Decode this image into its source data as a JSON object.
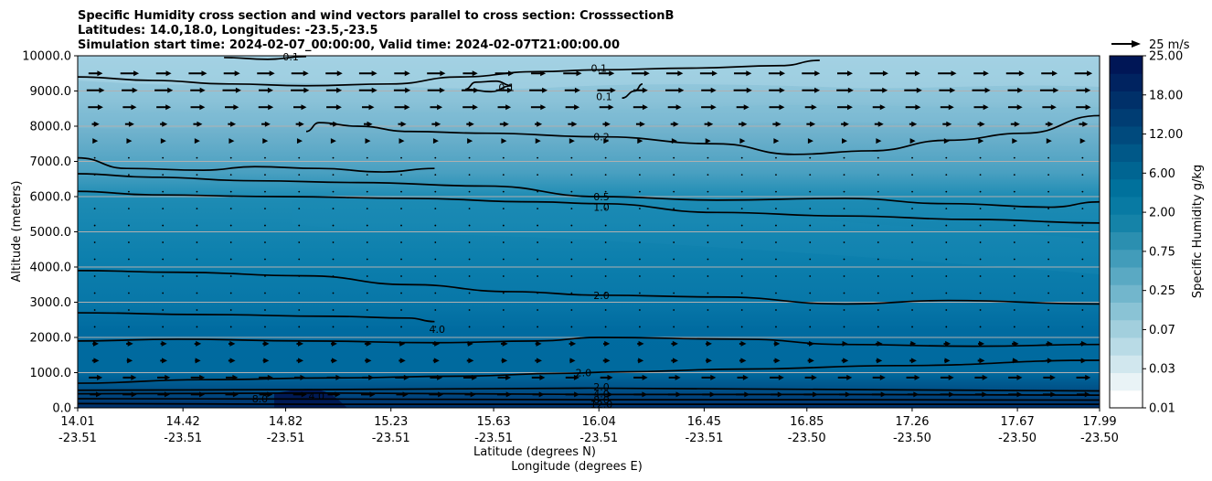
{
  "chart_data": {
    "type": "contour",
    "title_lines": [
      "Specific Humidity cross section and wind vectors parallel to cross section: CrosssectionB",
      "Latitudes: 14.0,18.0, Longitudes: -23.5,-23.5",
      "Simulation start time: 2024-02-07_00:00:00, Valid time: 2024-02-07T21:00:00.00"
    ],
    "ylabel": "Altitude (meters)",
    "xlabel_lines": [
      "Latitude (degrees N)",
      "Longitude (degrees E)"
    ],
    "ylim": [
      0,
      10000
    ],
    "y_ticks": [
      "0.0",
      "1000.0",
      "2000.0",
      "3000.0",
      "4000.0",
      "5000.0",
      "6000.0",
      "7000.0",
      "8000.0",
      "9000.0",
      "10000.0"
    ],
    "x_ticks": [
      {
        "lat": "14.01",
        "lon": "-23.51"
      },
      {
        "lat": "14.42",
        "lon": "-23.51"
      },
      {
        "lat": "14.82",
        "lon": "-23.51"
      },
      {
        "lat": "15.23",
        "lon": "-23.51"
      },
      {
        "lat": "15.63",
        "lon": "-23.51"
      },
      {
        "lat": "16.04",
        "lon": "-23.51"
      },
      {
        "lat": "16.45",
        "lon": "-23.51"
      },
      {
        "lat": "16.85",
        "lon": "-23.50"
      },
      {
        "lat": "17.26",
        "lon": "-23.50"
      },
      {
        "lat": "17.67",
        "lon": "-23.50"
      },
      {
        "lat": "17.99",
        "lon": "-23.50"
      }
    ],
    "grid": "horizontal",
    "colorbar": {
      "label": "Specific Humidity g/kg",
      "ticks": [
        "0.01",
        "0.03",
        "0.07",
        "0.25",
        "0.75",
        "2.00",
        "6.00",
        "12.00",
        "18.00",
        "25.00"
      ],
      "colors": [
        "#ffffff",
        "#e9f3f6",
        "#d1e7ee",
        "#b9dbe6",
        "#a2cfdd",
        "#8ac3d5",
        "#72b6cc",
        "#5aa9c3",
        "#429cba",
        "#2b8fb0",
        "#1583a8",
        "#087aa3",
        "#00719c",
        "#006592",
        "#005888",
        "#004a7d",
        "#003d73",
        "#003069",
        "#002360",
        "#001656"
      ]
    },
    "wind_reference": {
      "label": "25 m/s",
      "speed": 25
    },
    "contour_labels": [
      {
        "text": "0.1",
        "lat": 14.84,
        "alt": 9980
      },
      {
        "text": "0.1",
        "lat": 16.04,
        "alt": 9650
      },
      {
        "text": "0.1",
        "lat": 15.68,
        "alt": 9100
      },
      {
        "text": "0.1",
        "lat": 16.06,
        "alt": 8850
      },
      {
        "text": "0.2",
        "lat": 16.05,
        "alt": 7700
      },
      {
        "text": "0.5",
        "lat": 16.05,
        "alt": 6000
      },
      {
        "text": "1.0",
        "lat": 16.05,
        "alt": 5700
      },
      {
        "text": "2.0",
        "lat": 16.05,
        "alt": 3200
      },
      {
        "text": "4.0",
        "lat": 15.41,
        "alt": 2240
      },
      {
        "text": "2.0",
        "lat": 15.98,
        "alt": 1000
      },
      {
        "text": "2.0",
        "lat": 16.05,
        "alt": 600
      },
      {
        "text": "4.0",
        "lat": 16.05,
        "alt": 400
      },
      {
        "text": "8.0",
        "lat": 16.05,
        "alt": 230
      },
      {
        "text": "12.0",
        "lat": 16.05,
        "alt": 100
      },
      {
        "text": "8.0",
        "lat": 14.72,
        "alt": 260
      },
      {
        "text": "4.0",
        "lat": 14.94,
        "alt": 340
      }
    ],
    "contours": [
      {
        "level": "0.1",
        "points": [
          [
            14.01,
            9400
          ],
          [
            14.3,
            9300
          ],
          [
            14.6,
            9200
          ],
          [
            14.9,
            9150
          ],
          [
            15.23,
            9200
          ],
          [
            15.5,
            9400
          ],
          [
            15.8,
            9550
          ],
          [
            16.04,
            9600
          ],
          [
            16.4,
            9650
          ],
          [
            16.75,
            9720
          ],
          [
            16.9,
            9870
          ]
        ]
      },
      {
        "level": "0.1",
        "points": [
          [
            15.52,
            9050
          ],
          [
            15.56,
            9250
          ],
          [
            15.64,
            9280
          ],
          [
            15.7,
            9150
          ],
          [
            15.62,
            8980
          ],
          [
            15.52,
            9050
          ]
        ]
      },
      {
        "level": "0.1",
        "points": [
          [
            16.13,
            8800
          ],
          [
            16.18,
            9000
          ],
          [
            16.21,
            9200
          ]
        ]
      },
      {
        "level": "0.1",
        "points": [
          [
            14.58,
            9950
          ],
          [
            14.75,
            9900
          ],
          [
            14.9,
            9980
          ]
        ]
      },
      {
        "level": "0.2",
        "points": [
          [
            14.9,
            7850
          ],
          [
            14.95,
            8100
          ],
          [
            15.1,
            8000
          ],
          [
            15.3,
            7850
          ],
          [
            15.6,
            7800
          ],
          [
            16.04,
            7700
          ],
          [
            16.5,
            7500
          ],
          [
            16.8,
            7200
          ],
          [
            17.1,
            7300
          ],
          [
            17.4,
            7600
          ],
          [
            17.7,
            7800
          ],
          [
            17.99,
            8300
          ]
        ]
      },
      {
        "level": "0.2",
        "points": [
          [
            14.01,
            7100
          ],
          [
            14.2,
            6800
          ],
          [
            14.5,
            6750
          ],
          [
            14.7,
            6850
          ],
          [
            14.95,
            6800
          ],
          [
            15.2,
            6700
          ],
          [
            15.4,
            6800
          ]
        ]
      },
      {
        "level": "0.5",
        "points": [
          [
            14.01,
            6650
          ],
          [
            14.3,
            6550
          ],
          [
            14.7,
            6450
          ],
          [
            15.1,
            6400
          ],
          [
            15.6,
            6300
          ],
          [
            16.04,
            6000
          ],
          [
            16.5,
            5900
          ],
          [
            17.0,
            5950
          ],
          [
            17.4,
            5800
          ],
          [
            17.8,
            5700
          ],
          [
            17.99,
            5850
          ]
        ]
      },
      {
        "level": "1.0",
        "points": [
          [
            14.01,
            6150
          ],
          [
            14.3,
            6050
          ],
          [
            14.8,
            6000
          ],
          [
            15.3,
            5950
          ],
          [
            15.8,
            5850
          ],
          [
            16.04,
            5800
          ],
          [
            16.5,
            5550
          ],
          [
            17.0,
            5450
          ],
          [
            17.5,
            5350
          ],
          [
            17.99,
            5250
          ]
        ]
      },
      {
        "level": "2.0",
        "points": [
          [
            14.01,
            3900
          ],
          [
            14.4,
            3850
          ],
          [
            14.9,
            3750
          ],
          [
            15.3,
            3500
          ],
          [
            15.7,
            3300
          ],
          [
            16.04,
            3200
          ],
          [
            16.5,
            3150
          ],
          [
            17.0,
            2950
          ],
          [
            17.4,
            3050
          ],
          [
            17.99,
            2950
          ]
        ]
      },
      {
        "level": "4.0",
        "points": [
          [
            14.01,
            2700
          ],
          [
            14.5,
            2650
          ],
          [
            15.0,
            2600
          ],
          [
            15.3,
            2550
          ],
          [
            15.4,
            2450
          ]
        ]
      },
      {
        "level": "4.0",
        "points": [
          [
            14.01,
            1900
          ],
          [
            14.4,
            1950
          ],
          [
            14.9,
            1900
          ],
          [
            15.4,
            1850
          ],
          [
            15.8,
            1900
          ],
          [
            16.04,
            2000
          ],
          [
            16.6,
            1950
          ],
          [
            17.0,
            1800
          ],
          [
            17.5,
            1750
          ],
          [
            17.99,
            1800
          ]
        ]
      },
      {
        "level": "2.0",
        "points": [
          [
            14.01,
            700
          ],
          [
            14.5,
            800
          ],
          [
            15.0,
            850
          ],
          [
            15.5,
            900
          ],
          [
            15.9,
            980
          ],
          [
            16.1,
            1020
          ],
          [
            16.6,
            1100
          ],
          [
            17.2,
            1200
          ],
          [
            17.99,
            1350
          ]
        ]
      },
      {
        "level": "2.0",
        "points": [
          [
            14.01,
            500
          ],
          [
            15.0,
            520
          ],
          [
            16.0,
            560
          ],
          [
            17.0,
            520
          ],
          [
            17.99,
            480
          ]
        ]
      },
      {
        "level": "4.0",
        "points": [
          [
            14.01,
            400
          ],
          [
            15.0,
            420
          ],
          [
            16.0,
            380
          ],
          [
            17.0,
            380
          ],
          [
            17.99,
            360
          ]
        ]
      },
      {
        "level": "8.0",
        "points": [
          [
            14.01,
            260
          ],
          [
            15.0,
            250
          ],
          [
            16.0,
            230
          ],
          [
            17.0,
            230
          ],
          [
            17.99,
            220
          ]
        ]
      },
      {
        "level": "12.0",
        "points": [
          [
            14.01,
            120
          ],
          [
            15.0,
            100
          ],
          [
            16.0,
            100
          ],
          [
            17.0,
            100
          ],
          [
            17.99,
            100
          ]
        ]
      }
    ]
  }
}
